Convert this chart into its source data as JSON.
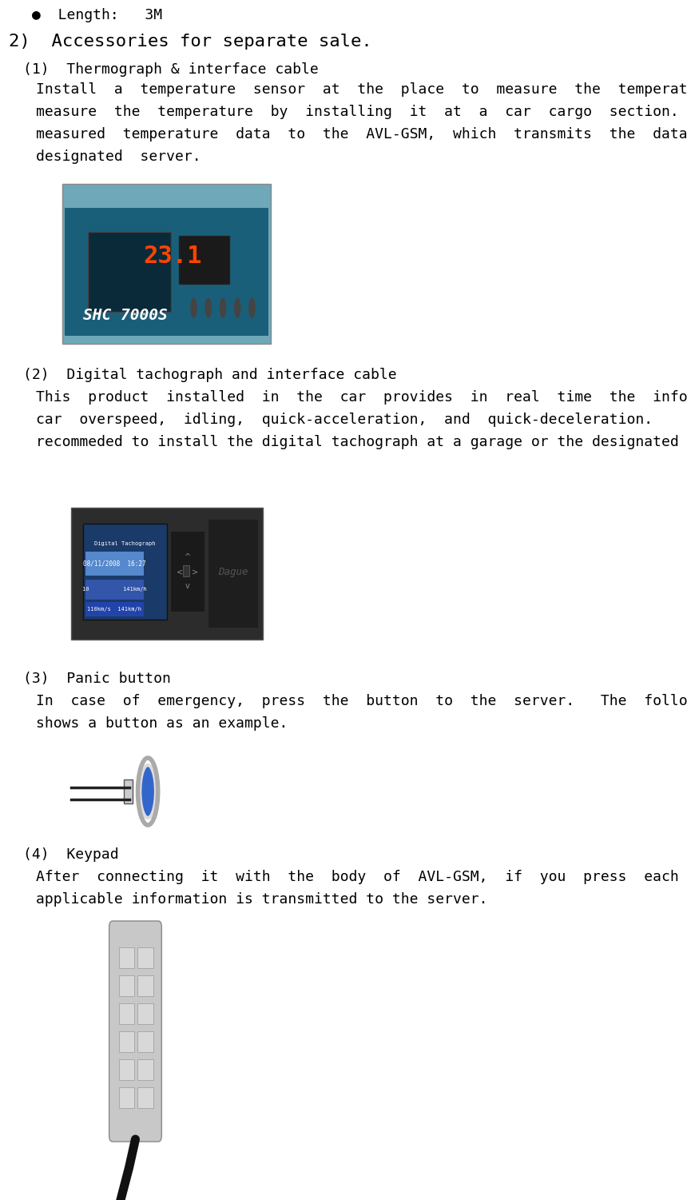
{
  "bg_color": "#ffffff",
  "bullet_text": "●  Length:   3M",
  "section_title": "2)  Accessories for separate sale.",
  "sub1_title": "(1)  Thermograph & interface cable",
  "sub1_body": "Install  a  temperature  sensor  at  the  place  to  measure  the  temperature.   You  may\nmeasure  the  temperature  by  installing  it  at  a  car  cargo  section.   Send  the\nmeasured  temperature  data  to  the  AVL-GSM,  which  transmits  the  data  to  the\ndesignated  server.",
  "sub2_title": "(2)  Digital tachograph and interface cable",
  "sub2_body": "This  product  installed  in  the  car  provides  in  real  time  the  information  including\ncar  overspeed,  idling,  quick-acceleration,  and  quick-deceleration.    It  is\nrecommeded to install the digital tachograph at a garage or the designated shop.",
  "sub3_title": "(3)  Panic button",
  "sub3_body": "In  case  of  emergency,  press  the  button  to  the  server.   The  following  picture\nshows a button as an example.",
  "sub4_title": "(4)  Keypad",
  "sub4_body": "After  connecting  it  with  the  body  of  AVL-GSM,  if  you  press  each  button,  its\napplicable information is transmitted to the server.",
  "text_color": "#000000",
  "title_fontsize": 20,
  "section_fontsize": 16,
  "sub_title_fontsize": 13,
  "body_fontsize": 13,
  "bullet_fontsize": 13,
  "img1_color": "#6fa8b8",
  "img2_color": "#2c2c2c",
  "img3_color": "#cccccc",
  "img4_color": "#aaaaaa"
}
